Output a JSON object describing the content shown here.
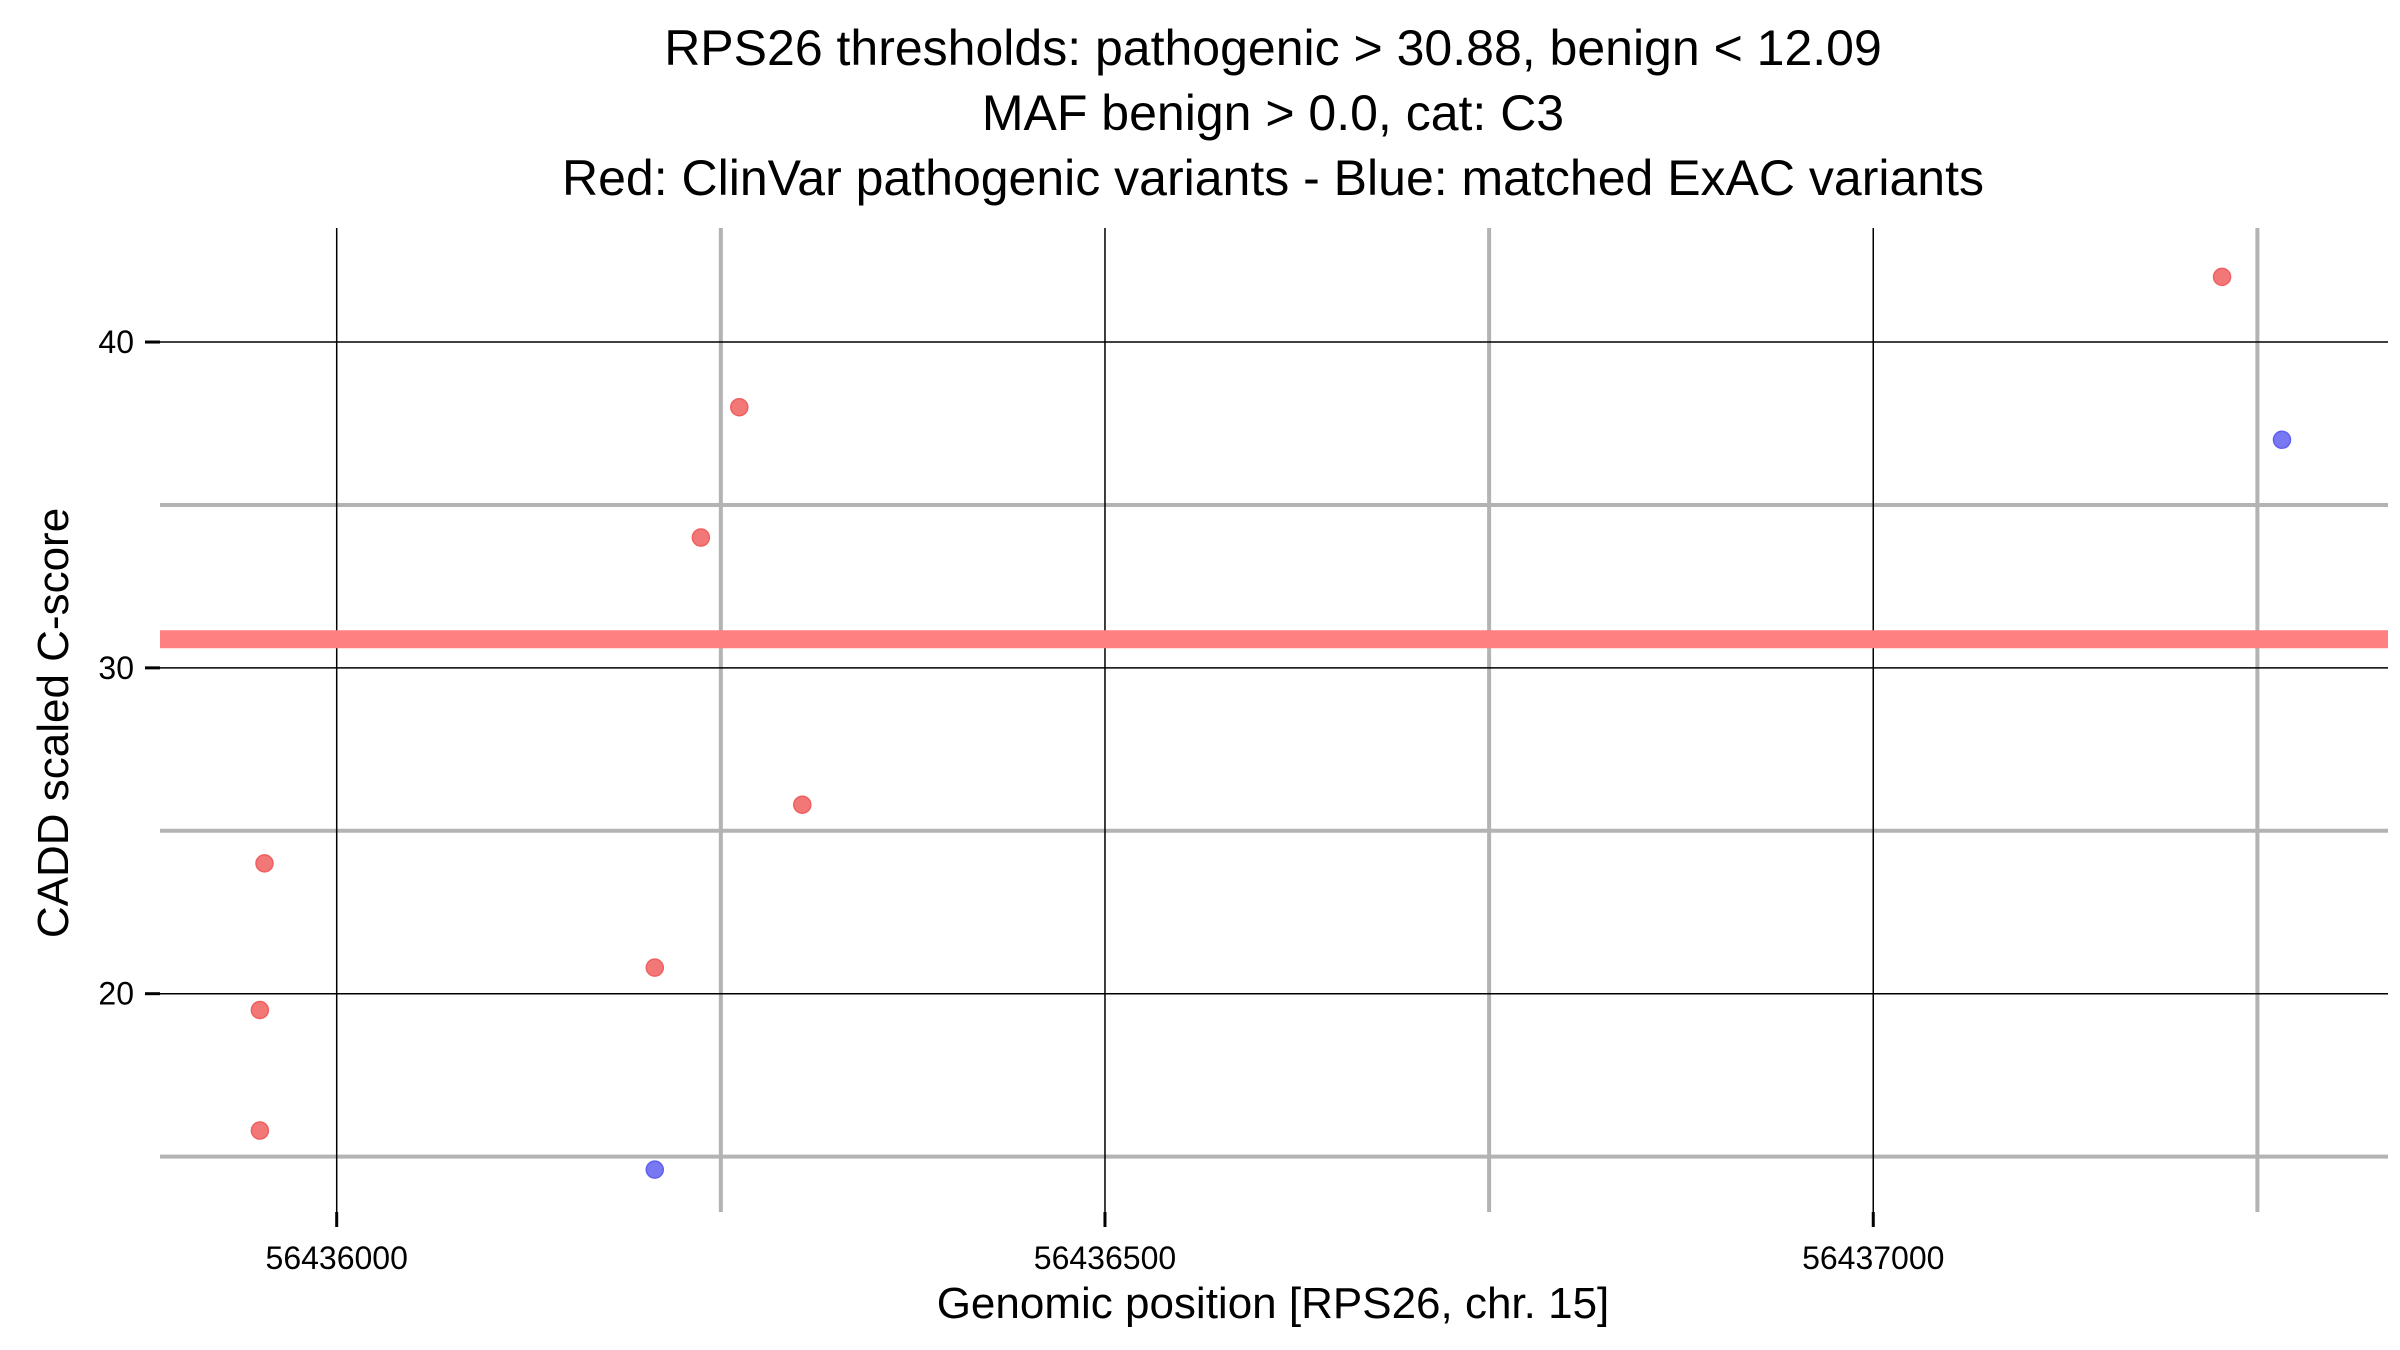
{
  "chart_data": {
    "type": "scatter",
    "title_lines": [
      "RPS26 thresholds: pathogenic > 30.88, benign < 12.09",
      "MAF benign > 0.0, cat: C3",
      "Red: ClinVar pathogenic variants - Blue: matched ExAC variants"
    ],
    "xlabel": "Genomic position [RPS26, chr. 15]",
    "ylabel": "CADD scaled C-score",
    "xlim": [
      56435885,
      56437335
    ],
    "ylim": [
      13.3,
      43.5
    ],
    "x_major_ticks": [
      56436000,
      56436500,
      56437000
    ],
    "x_tick_labels": [
      "56436000",
      "56436500",
      "56437000"
    ],
    "x_minor_ticks": [
      56436250,
      56436750,
      56437250
    ],
    "y_major_ticks": [
      20,
      30,
      40
    ],
    "y_tick_labels": [
      "20",
      "30",
      "40"
    ],
    "y_minor_ticks": [
      15,
      25,
      35
    ],
    "grid": true,
    "threshold_line": {
      "y": 30.88,
      "color": "#ff8080"
    },
    "series": [
      {
        "color": "#f06060",
        "points": [
          {
            "x": 56435953,
            "y": 24.0
          },
          {
            "x": 56435950,
            "y": 19.5
          },
          {
            "x": 56435950,
            "y": 15.8
          },
          {
            "x": 56436207,
            "y": 20.8
          },
          {
            "x": 56436237,
            "y": 34.0
          },
          {
            "x": 56436262,
            "y": 38.0
          },
          {
            "x": 56436303,
            "y": 25.8
          },
          {
            "x": 56437227,
            "y": 42.0
          }
        ]
      },
      {
        "color": "#6060f0",
        "points": [
          {
            "x": 56436207,
            "y": 14.6
          },
          {
            "x": 56437266,
            "y": 37.0
          }
        ]
      }
    ]
  }
}
